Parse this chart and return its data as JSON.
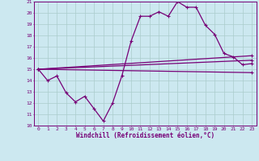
{
  "xlabel": "Windchill (Refroidissement éolien,°C)",
  "background_color": "#cce8f0",
  "grid_color": "#aacccc",
  "line_color": "#770077",
  "xlim": [
    -0.5,
    23.5
  ],
  "ylim": [
    10,
    21
  ],
  "xticks": [
    0,
    1,
    2,
    3,
    4,
    5,
    6,
    7,
    8,
    9,
    10,
    11,
    12,
    13,
    14,
    15,
    16,
    17,
    18,
    19,
    20,
    21,
    22,
    23
  ],
  "yticks": [
    10,
    11,
    12,
    13,
    14,
    15,
    16,
    17,
    18,
    19,
    20,
    21
  ],
  "line1_x": [
    0,
    1,
    2,
    3,
    4,
    5,
    6,
    7,
    8,
    9,
    10,
    11,
    12,
    13,
    14,
    15,
    16,
    17,
    18,
    19,
    20,
    21,
    22,
    23
  ],
  "line1_y": [
    15.0,
    14.0,
    14.4,
    12.9,
    12.1,
    12.6,
    11.5,
    10.4,
    12.0,
    14.4,
    17.5,
    19.7,
    19.7,
    20.1,
    19.7,
    21.0,
    20.5,
    20.5,
    18.9,
    18.1,
    16.4,
    16.1,
    15.4,
    15.5
  ],
  "line2_x": [
    0,
    23
  ],
  "line2_y": [
    15.0,
    15.8
  ],
  "line3_x": [
    0,
    23
  ],
  "line3_y": [
    15.0,
    16.2
  ],
  "line4_x": [
    0,
    23
  ],
  "line4_y": [
    15.0,
    14.7
  ]
}
